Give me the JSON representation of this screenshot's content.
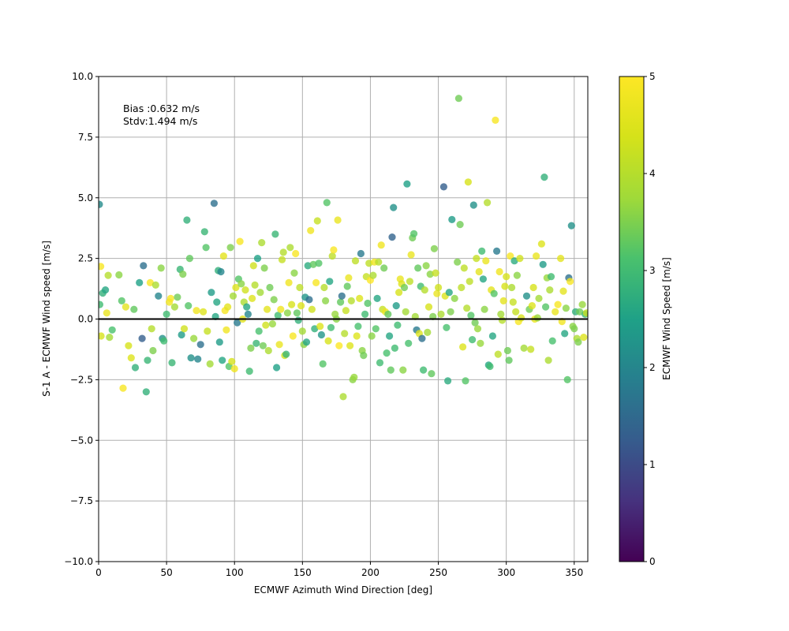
{
  "chart_data": {
    "type": "scatter",
    "xlabel": "ECMWF Azimuth Wind Direction [deg]",
    "ylabel": "S-1 A - ECMWF Wind speed [m/s]",
    "xlim": [
      0,
      360
    ],
    "ylim": [
      -10,
      10
    ],
    "x_ticks": [
      "0",
      "50",
      "100",
      "150",
      "200",
      "250",
      "300",
      "350"
    ],
    "y_ticks": [
      "10.0",
      "7.5",
      "5.0",
      "2.5",
      "0.0",
      "−2.5",
      "−5.0",
      "−7.5",
      "−10.0"
    ],
    "grid": true,
    "reference_line_y": 0,
    "annotations": [
      "Bias :0.632 m/s",
      "Stdv:1.494 m/s"
    ],
    "colorbar": {
      "label": "ECMWF Wind Speed [m/s]",
      "range": [
        0,
        5
      ],
      "ticks": [
        "0",
        "1",
        "2",
        "3",
        "4",
        "5"
      ],
      "colormap": "viridis"
    },
    "points": [
      [
        0.5,
        4.73,
        2.1
      ],
      [
        0.8,
        0.6,
        3.0
      ],
      [
        1.5,
        2.17,
        4.9
      ],
      [
        1.8,
        -0.7,
        4.4
      ],
      [
        3,
        1.07,
        2.8
      ],
      [
        5,
        1.2,
        2.6
      ],
      [
        6,
        0.25,
        4.7
      ],
      [
        7,
        1.8,
        4.0
      ],
      [
        8,
        -0.75,
        3.8
      ],
      [
        10,
        -0.45,
        3.1
      ],
      [
        15,
        1.82,
        3.6
      ],
      [
        17,
        0.75,
        3.2
      ],
      [
        18,
        -2.85,
        4.9
      ],
      [
        20,
        0.5,
        4.6
      ],
      [
        22,
        -1.1,
        4.4
      ],
      [
        24,
        -1.6,
        4.5
      ],
      [
        26,
        0.4,
        3.3
      ],
      [
        27,
        -2.0,
        2.8
      ],
      [
        30,
        1.5,
        2.5
      ],
      [
        32,
        -0.8,
        1.3
      ],
      [
        33,
        2.2,
        1.6
      ],
      [
        35,
        -3.0,
        2.8
      ],
      [
        36,
        -1.7,
        2.9
      ],
      [
        38,
        1.5,
        4.9
      ],
      [
        39,
        -0.4,
        4.0
      ],
      [
        40,
        -1.3,
        3.5
      ],
      [
        42,
        1.4,
        3.9
      ],
      [
        44,
        0.95,
        2.0
      ],
      [
        46,
        2.1,
        3.6
      ],
      [
        47,
        -0.8,
        2.2
      ],
      [
        48,
        -0.9,
        3.0
      ],
      [
        50,
        0.2,
        3.0
      ],
      [
        52,
        0.7,
        4.8
      ],
      [
        53,
        0.85,
        4.9
      ],
      [
        54,
        -1.8,
        2.9
      ],
      [
        56,
        0.5,
        3.8
      ],
      [
        58,
        0.9,
        3.4
      ],
      [
        60,
        2.05,
        2.9
      ],
      [
        61,
        -0.65,
        2.4
      ],
      [
        62,
        1.85,
        3.5
      ],
      [
        63,
        -0.4,
        4.3
      ],
      [
        65,
        4.08,
        2.8
      ],
      [
        66,
        0.55,
        3.2
      ],
      [
        67,
        2.5,
        3.3
      ],
      [
        68,
        -1.6,
        2.2
      ],
      [
        70,
        -0.8,
        3.7
      ],
      [
        72,
        0.35,
        4.8
      ],
      [
        73,
        -1.65,
        2.0
      ],
      [
        75,
        -1.05,
        1.6
      ],
      [
        77,
        0.3,
        4.5
      ],
      [
        78,
        3.6,
        2.9
      ],
      [
        79,
        2.95,
        3.2
      ],
      [
        80,
        -0.5,
        4.2
      ],
      [
        82,
        -1.85,
        3.8
      ],
      [
        83,
        1.1,
        2.4
      ],
      [
        85,
        4.77,
        1.6
      ],
      [
        86,
        0.1,
        2.6
      ],
      [
        87,
        0.7,
        2.6
      ],
      [
        88,
        2.0,
        2.8
      ],
      [
        89,
        -0.95,
        2.4
      ],
      [
        90,
        1.95,
        2.0
      ],
      [
        91,
        -1.7,
        2.6
      ],
      [
        92,
        2.6,
        4.6
      ],
      [
        93,
        0.35,
        4.9
      ],
      [
        94,
        -0.45,
        4.8
      ],
      [
        95,
        0.5,
        4.6
      ],
      [
        96,
        -1.95,
        3.2
      ],
      [
        97,
        2.95,
        3.5
      ],
      [
        98,
        -1.75,
        4.4
      ],
      [
        99,
        0.95,
        3.8
      ],
      [
        100,
        -2.05,
        4.8
      ],
      [
        101,
        1.3,
        4.5
      ],
      [
        102,
        -0.15,
        1.8
      ],
      [
        103,
        1.65,
        3.2
      ],
      [
        104,
        3.2,
        4.9
      ],
      [
        105,
        1.45,
        3.6
      ],
      [
        106,
        0.0,
        4.6
      ],
      [
        107,
        0.7,
        3.9
      ],
      [
        108,
        1.2,
        4.3
      ],
      [
        109,
        0.5,
        2.6
      ],
      [
        110,
        0.2,
        2.0
      ],
      [
        111,
        -2.15,
        3.0
      ],
      [
        112,
        -1.2,
        3.5
      ],
      [
        113,
        0.85,
        4.5
      ],
      [
        114,
        2.2,
        4.3
      ],
      [
        115,
        1.4,
        4.0
      ],
      [
        116,
        -1.0,
        2.9
      ],
      [
        117,
        2.5,
        2.5
      ],
      [
        118,
        -0.5,
        3.1
      ],
      [
        119,
        1.1,
        3.8
      ],
      [
        120,
        3.15,
        3.9
      ],
      [
        121,
        -1.1,
        3.4
      ],
      [
        122,
        2.1,
        3.5
      ],
      [
        123,
        -0.25,
        4.3
      ],
      [
        124,
        0.4,
        4.6
      ],
      [
        125,
        -1.3,
        3.9
      ],
      [
        126,
        1.3,
        3.4
      ],
      [
        128,
        -0.2,
        3.7
      ],
      [
        129,
        0.8,
        3.5
      ],
      [
        130,
        3.5,
        2.9
      ],
      [
        131,
        -2.0,
        2.5
      ],
      [
        132,
        0.15,
        3.0
      ],
      [
        133,
        -1.05,
        4.7
      ],
      [
        134,
        0.4,
        4.8
      ],
      [
        135,
        2.45,
        4.2
      ],
      [
        136,
        2.75,
        4.0
      ],
      [
        137,
        -1.5,
        4.4
      ],
      [
        138,
        -1.45,
        2.9
      ],
      [
        139,
        0.25,
        3.6
      ],
      [
        140,
        1.5,
        4.8
      ],
      [
        141,
        2.95,
        3.9
      ],
      [
        142,
        0.6,
        4.4
      ],
      [
        143,
        -0.7,
        4.9
      ],
      [
        144,
        1.9,
        3.6
      ],
      [
        145,
        2.7,
        4.9
      ],
      [
        146,
        0.25,
        3.3
      ],
      [
        147,
        -0.05,
        2.8
      ],
      [
        148,
        1.3,
        4.1
      ],
      [
        149,
        0.55,
        4.5
      ],
      [
        150,
        -0.5,
        3.8
      ],
      [
        151,
        -1.05,
        3.6
      ],
      [
        152,
        0.9,
        2.3
      ],
      [
        153,
        -0.95,
        2.6
      ],
      [
        154,
        2.2,
        2.7
      ],
      [
        155,
        0.8,
        1.6
      ],
      [
        156,
        3.65,
        4.8
      ],
      [
        157,
        0.4,
        4.3
      ],
      [
        158,
        2.25,
        3.3
      ],
      [
        159,
        -0.4,
        2.8
      ],
      [
        160,
        1.5,
        4.9
      ],
      [
        161,
        4.05,
        4.2
      ],
      [
        162,
        2.3,
        3.2
      ],
      [
        163,
        -0.3,
        4.5
      ],
      [
        164,
        -0.65,
        2.3
      ],
      [
        165,
        -1.85,
        3.2
      ],
      [
        166,
        1.3,
        4.0
      ],
      [
        167,
        0.75,
        3.6
      ],
      [
        168,
        4.8,
        3.2
      ],
      [
        169,
        -0.9,
        4.4
      ],
      [
        170,
        1.55,
        2.6
      ],
      [
        171,
        -0.35,
        3.0
      ],
      [
        172,
        2.6,
        4.1
      ],
      [
        173,
        2.85,
        4.9
      ],
      [
        174,
        0.2,
        3.7
      ],
      [
        175,
        0.0,
        3.6
      ],
      [
        176,
        4.08,
        4.7
      ],
      [
        177,
        -1.1,
        5.0
      ],
      [
        178,
        0.7,
        3.3
      ],
      [
        179,
        0.95,
        1.6
      ],
      [
        180,
        -3.2,
        3.9
      ],
      [
        181,
        -0.6,
        4.0
      ],
      [
        182,
        0.35,
        4.2
      ],
      [
        183,
        1.35,
        3.3
      ],
      [
        184,
        1.7,
        4.7
      ],
      [
        185,
        -1.1,
        4.5
      ],
      [
        186,
        0.75,
        4.0
      ],
      [
        187,
        -2.5,
        3.6
      ],
      [
        188,
        -2.4,
        3.7
      ],
      [
        189,
        2.4,
        4.1
      ],
      [
        190,
        -0.7,
        4.5
      ],
      [
        191,
        -0.3,
        3.1
      ],
      [
        192,
        0.85,
        4.5
      ],
      [
        193,
        2.7,
        1.8
      ],
      [
        194,
        -1.3,
        3.6
      ],
      [
        195,
        -1.5,
        3.4
      ],
      [
        196,
        0.2,
        3.0
      ],
      [
        197,
        1.75,
        4.2
      ],
      [
        198,
        0.65,
        3.2
      ],
      [
        199,
        2.3,
        4.1
      ],
      [
        200,
        1.6,
        5.0
      ],
      [
        201,
        -0.7,
        3.6
      ],
      [
        202,
        1.8,
        3.9
      ],
      [
        203,
        2.35,
        4.8
      ],
      [
        204,
        -0.4,
        3.2
      ],
      [
        205,
        0.85,
        2.6
      ],
      [
        206,
        2.35,
        4.0
      ],
      [
        207,
        -1.8,
        3.0
      ],
      [
        208,
        3.05,
        4.8
      ],
      [
        209,
        0.4,
        4.2
      ],
      [
        210,
        2.1,
        3.4
      ],
      [
        211,
        0.3,
        4.7
      ],
      [
        212,
        -1.4,
        3.1
      ],
      [
        213,
        0.2,
        3.3
      ],
      [
        214,
        -0.7,
        2.6
      ],
      [
        215,
        -2.1,
        3.3
      ],
      [
        216,
        3.38,
        1.4
      ],
      [
        217,
        4.6,
        2.2
      ],
      [
        218,
        -1.2,
        3.0
      ],
      [
        219,
        0.55,
        2.4
      ],
      [
        220,
        -0.25,
        3.0
      ],
      [
        221,
        1.1,
        4.4
      ],
      [
        222,
        1.65,
        4.7
      ],
      [
        223,
        1.45,
        4.5
      ],
      [
        224,
        -2.1,
        3.6
      ],
      [
        225,
        1.3,
        3.4
      ],
      [
        226,
        0.3,
        3.8
      ],
      [
        227,
        5.57,
        2.5
      ],
      [
        228,
        -1.0,
        3.1
      ],
      [
        229,
        1.55,
        4.1
      ],
      [
        230,
        2.65,
        4.7
      ],
      [
        231,
        3.35,
        3.4
      ],
      [
        232,
        3.52,
        3.2
      ],
      [
        233,
        0.1,
        3.8
      ],
      [
        234,
        -0.45,
        1.8
      ],
      [
        235,
        2.1,
        3.3
      ],
      [
        236,
        -0.6,
        4.5
      ],
      [
        237,
        1.35,
        3.0
      ],
      [
        238,
        -0.8,
        1.6
      ],
      [
        239,
        -2.1,
        3.0
      ],
      [
        240,
        1.2,
        4.0
      ],
      [
        241,
        2.2,
        3.6
      ],
      [
        242,
        -0.55,
        3.8
      ],
      [
        243,
        0.5,
        4.4
      ],
      [
        244,
        1.85,
        3.6
      ],
      [
        245,
        -2.25,
        3.3
      ],
      [
        246,
        0.1,
        3.5
      ],
      [
        247,
        2.9,
        3.5
      ],
      [
        248,
        1.9,
        4.2
      ],
      [
        249,
        1.05,
        4.7
      ],
      [
        250,
        1.3,
        4.3
      ],
      [
        252,
        0.2,
        3.9
      ],
      [
        254,
        5.45,
        1.3
      ],
      [
        255,
        0.95,
        4.5
      ],
      [
        256,
        -0.35,
        3.1
      ],
      [
        257,
        -2.55,
        2.7
      ],
      [
        258,
        1.1,
        2.6
      ],
      [
        259,
        0.3,
        3.5
      ],
      [
        260,
        4.1,
        2.4
      ],
      [
        262,
        0.85,
        3.6
      ],
      [
        264,
        2.35,
        3.5
      ],
      [
        265,
        9.1,
        3.4
      ],
      [
        266,
        3.9,
        3.4
      ],
      [
        267,
        1.3,
        4.1
      ],
      [
        268,
        -1.15,
        4.5
      ],
      [
        269,
        2.1,
        4.1
      ],
      [
        270,
        -2.55,
        3.2
      ],
      [
        271,
        0.45,
        4.0
      ],
      [
        272,
        5.65,
        4.4
      ],
      [
        273,
        1.55,
        4.1
      ],
      [
        274,
        0.15,
        3.2
      ],
      [
        275,
        -0.85,
        3.0
      ],
      [
        276,
        4.7,
        2.2
      ],
      [
        277,
        -0.15,
        3.4
      ],
      [
        278,
        2.5,
        4.2
      ],
      [
        279,
        -0.4,
        3.7
      ],
      [
        280,
        1.95,
        4.6
      ],
      [
        281,
        -1.0,
        3.7
      ],
      [
        282,
        2.8,
        3.0
      ],
      [
        283,
        1.65,
        2.6
      ],
      [
        284,
        0.4,
        3.6
      ],
      [
        285,
        2.4,
        4.7
      ],
      [
        286,
        4.8,
        4.0
      ],
      [
        287,
        -1.9,
        2.6
      ],
      [
        288,
        -1.95,
        3.0
      ],
      [
        289,
        1.2,
        4.6
      ],
      [
        290,
        -0.7,
        2.6
      ],
      [
        291,
        1.05,
        3.2
      ],
      [
        292,
        8.2,
        4.9
      ],
      [
        293,
        2.8,
        1.8
      ],
      [
        294,
        -1.45,
        4.1
      ],
      [
        295,
        1.95,
        4.8
      ],
      [
        296,
        0.2,
        3.8
      ],
      [
        297,
        -0.05,
        4.0
      ],
      [
        298,
        0.75,
        4.6
      ],
      [
        299,
        1.35,
        4.4
      ],
      [
        300,
        1.75,
        4.4
      ],
      [
        301,
        -1.3,
        3.4
      ],
      [
        302,
        -1.7,
        3.3
      ],
      [
        303,
        2.6,
        4.9
      ],
      [
        304,
        1.3,
        3.9
      ],
      [
        305,
        0.7,
        4.2
      ],
      [
        306,
        2.4,
        2.7
      ],
      [
        307,
        0.3,
        4.2
      ],
      [
        308,
        1.8,
        3.6
      ],
      [
        309,
        -0.1,
        4.9
      ],
      [
        310,
        2.5,
        4.3
      ],
      [
        311,
        0.05,
        4.4
      ],
      [
        313,
        -1.2,
        3.8
      ],
      [
        315,
        0.95,
        2.2
      ],
      [
        317,
        0.4,
        3.4
      ],
      [
        318,
        -1.25,
        4.2
      ],
      [
        319,
        0.55,
        4.5
      ],
      [
        320,
        1.3,
        4.4
      ],
      [
        321,
        0.0,
        4.7
      ],
      [
        322,
        2.6,
        4.7
      ],
      [
        323,
        0.05,
        3.7
      ],
      [
        324,
        0.85,
        3.8
      ],
      [
        326,
        3.1,
        4.5
      ],
      [
        327,
        2.25,
        2.4
      ],
      [
        328,
        5.85,
        2.8
      ],
      [
        329,
        0.5,
        3.2
      ],
      [
        330,
        1.7,
        3.7
      ],
      [
        331,
        -1.7,
        3.9
      ],
      [
        332,
        1.2,
        3.9
      ],
      [
        333,
        1.75,
        3.0
      ],
      [
        334,
        -0.9,
        3.1
      ],
      [
        336,
        0.3,
        4.7
      ],
      [
        338,
        0.6,
        4.9
      ],
      [
        340,
        2.5,
        4.6
      ],
      [
        341,
        -0.1,
        4.8
      ],
      [
        342,
        1.15,
        4.6
      ],
      [
        343,
        -0.6,
        2.6
      ],
      [
        344,
        0.45,
        3.6
      ],
      [
        345,
        -2.5,
        3.2
      ],
      [
        346,
        1.7,
        1.6
      ],
      [
        347,
        1.55,
        4.9
      ],
      [
        348,
        3.85,
        2.2
      ],
      [
        349,
        -0.3,
        3.6
      ],
      [
        350,
        -0.4,
        3.5
      ],
      [
        351,
        0.3,
        2.8
      ],
      [
        352,
        -0.8,
        3.9
      ],
      [
        353,
        -0.95,
        3.5
      ],
      [
        354,
        0.3,
        3.4
      ],
      [
        356,
        0.6,
        3.7
      ],
      [
        357,
        -0.75,
        4.5
      ],
      [
        358,
        0.2,
        2.9
      ],
      [
        359,
        0.25,
        4.2
      ]
    ]
  }
}
